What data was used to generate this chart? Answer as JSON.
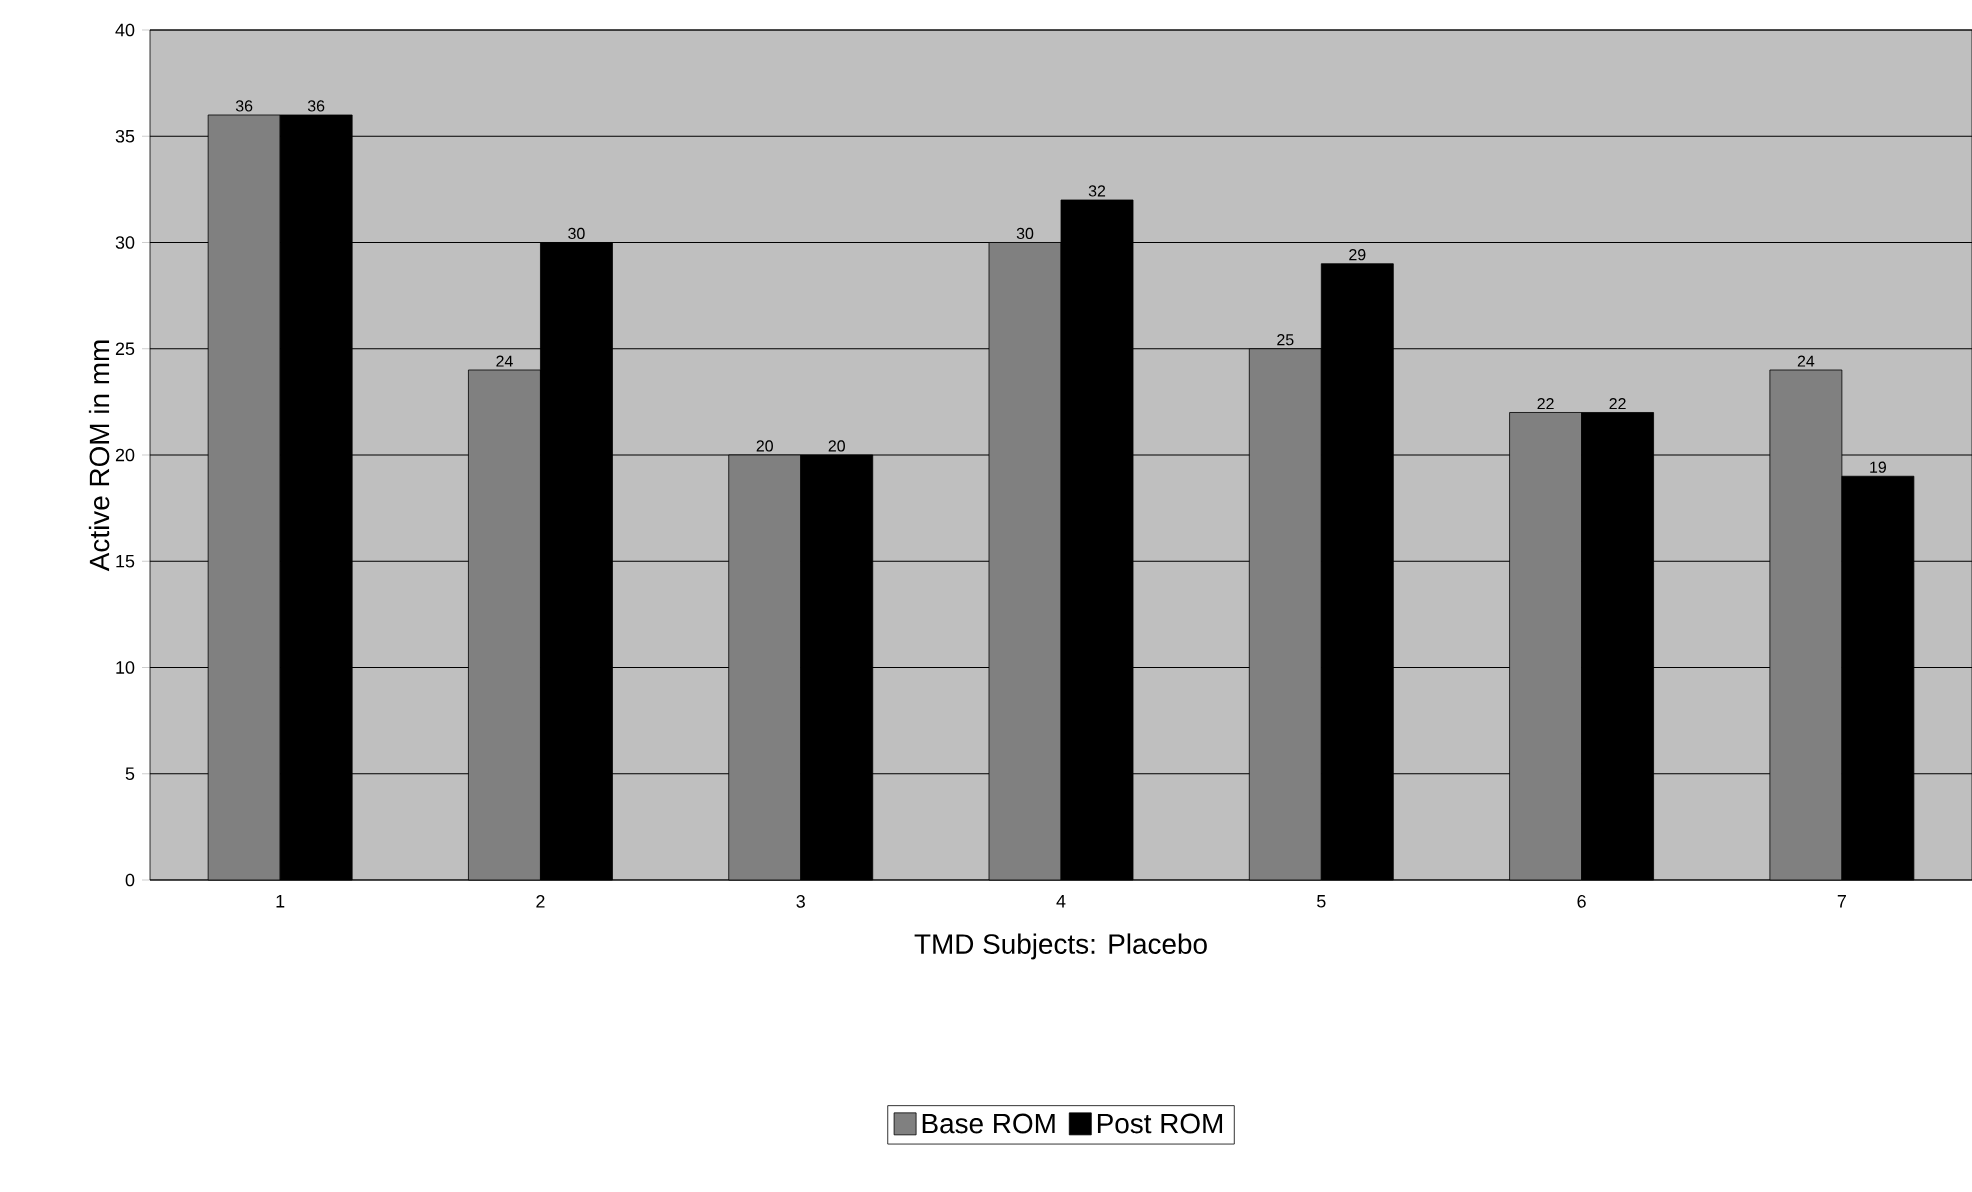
{
  "chart_data": {
    "type": "bar",
    "xlabel": "TMD Subjects: Placebo",
    "ylabel": "Active ROM in mm",
    "categories": [
      "1",
      "2",
      "3",
      "4",
      "5",
      "6",
      "7"
    ],
    "series": [
      {
        "name": "Base ROM",
        "color": "#808080",
        "values": [
          36,
          24,
          20,
          30,
          25,
          22,
          24
        ]
      },
      {
        "name": "Post ROM",
        "color": "#000000",
        "values": [
          36,
          30,
          20,
          32,
          29,
          22,
          19
        ]
      }
    ],
    "ylim": [
      0,
      40
    ],
    "yticks": [
      0,
      5,
      10,
      15,
      20,
      25,
      30,
      35,
      40
    ],
    "grid": "y",
    "legend": "bottom",
    "data_labels": true
  }
}
